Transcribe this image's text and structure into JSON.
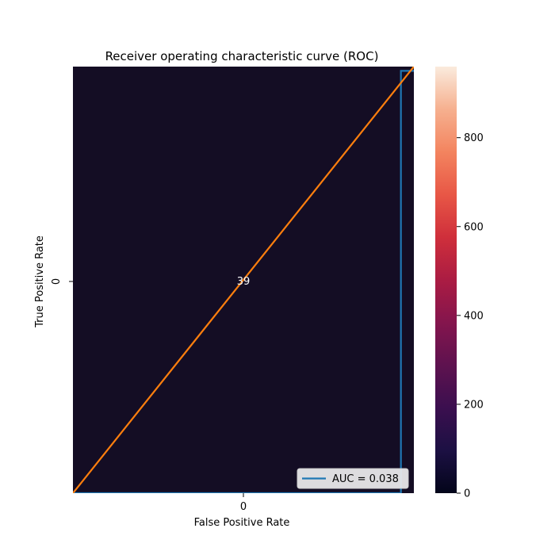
{
  "chart_data": {
    "type": "heatmap",
    "title": "Receiver operating characteristic curve (ROC)",
    "xlabel": "False Positive Rate",
    "ylabel": "True Positive Rate",
    "x_tick_labels": [
      "0"
    ],
    "y_tick_labels": [
      "0"
    ],
    "cells": [
      [
        39
      ]
    ],
    "cell_annotation": "39",
    "colorbar": {
      "vmin": 0,
      "vmax": 960,
      "ticks": [
        0,
        200,
        400,
        600,
        800
      ],
      "tick_labels": [
        "0",
        "200",
        "400",
        "600",
        "800"
      ],
      "colormap": "rocket"
    },
    "overlay_xlim": [
      0,
      1
    ],
    "overlay_ylim": [
      0,
      1
    ],
    "series": [
      {
        "name": "AUC = 0.038",
        "type": "line",
        "color": "#1f77b4",
        "x": [
          0,
          0.962,
          0.962,
          1
        ],
        "y": [
          0,
          0,
          0.99,
          0.99
        ]
      },
      {
        "type": "line",
        "color": "#ff7f0e",
        "x": [
          0,
          1
        ],
        "y": [
          0,
          1
        ]
      }
    ],
    "legend": {
      "placement": "lower-right",
      "entries": [
        "AUC = 0.038"
      ]
    },
    "grid": false
  }
}
